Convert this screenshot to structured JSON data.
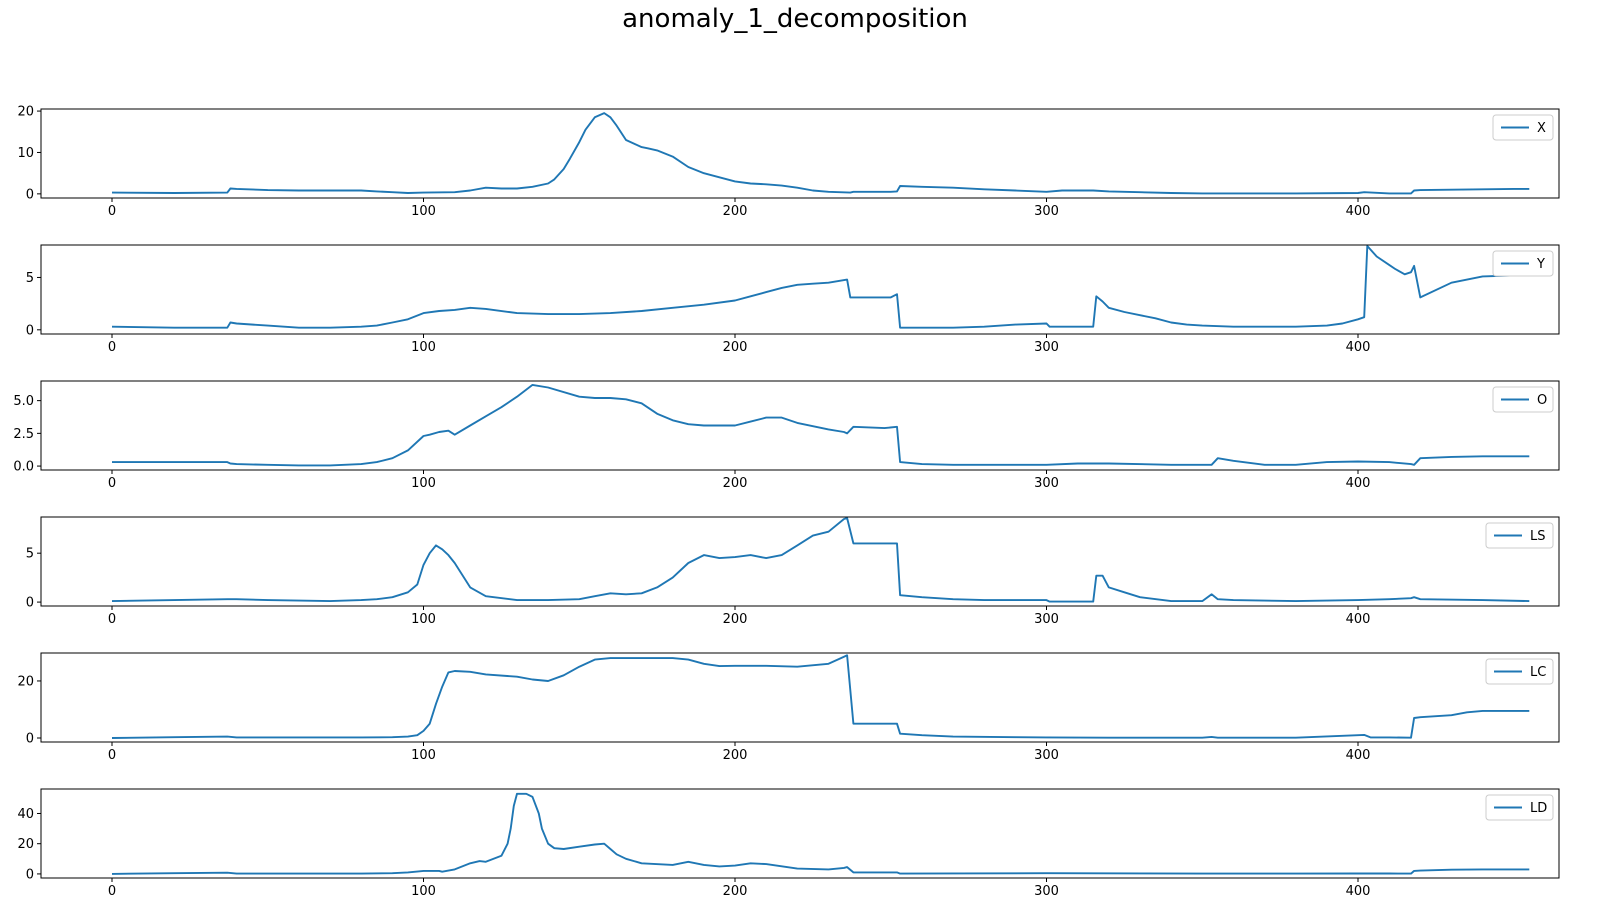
{
  "figure": {
    "title": "anomaly_1_decomposition"
  },
  "colors": {
    "line": "#1f77b4",
    "axes": "#000000",
    "legend_border": "#cccccc"
  },
  "chart_data": [
    {
      "type": "line",
      "legend": "X",
      "legend_loc": "upper right",
      "grid": false,
      "xlim": [
        0,
        455
      ],
      "ylim": [
        -1,
        20.5
      ],
      "xticks": [
        0,
        100,
        200,
        300,
        400
      ],
      "yticks": [
        0,
        10,
        20
      ],
      "x": [
        0,
        20,
        37,
        38,
        40,
        50,
        60,
        80,
        85,
        90,
        95,
        100,
        110,
        115,
        120,
        125,
        130,
        135,
        140,
        142,
        145,
        147,
        150,
        152,
        155,
        158,
        160,
        162,
        165,
        168,
        170,
        172,
        175,
        180,
        185,
        190,
        195,
        200,
        205,
        210,
        215,
        220,
        225,
        230,
        237,
        238,
        250,
        252,
        253,
        260,
        270,
        280,
        290,
        300,
        305,
        315,
        320,
        330,
        340,
        350,
        360,
        380,
        400,
        402,
        410,
        417,
        418,
        420,
        430,
        440,
        450,
        455
      ],
      "y": [
        0.3,
        0.2,
        0.3,
        1.3,
        1.2,
        0.9,
        0.8,
        0.8,
        0.6,
        0.4,
        0.2,
        0.3,
        0.4,
        0.8,
        1.5,
        1.3,
        1.3,
        1.7,
        2.5,
        3.5,
        6,
        8.5,
        12.5,
        15.5,
        18.5,
        19.5,
        18.5,
        16.5,
        13,
        12,
        11.3,
        11,
        10.5,
        9,
        6.5,
        5,
        4,
        3,
        2.5,
        2.3,
        2,
        1.5,
        0.8,
        0.5,
        0.3,
        0.5,
        0.5,
        0.6,
        1.9,
        1.7,
        1.5,
        1.1,
        0.8,
        0.5,
        0.8,
        0.8,
        0.6,
        0.4,
        0.2,
        0.1,
        0.1,
        0.1,
        0.2,
        0.4,
        0.1,
        0.1,
        0.8,
        0.9,
        1.0,
        1.1,
        1.2,
        1.2
      ]
    },
    {
      "type": "line",
      "legend": "Y",
      "legend_loc": "upper right",
      "grid": false,
      "xlim": [
        0,
        455
      ],
      "ylim": [
        -0.4,
        8.1
      ],
      "xticks": [
        0,
        100,
        200,
        300,
        400
      ],
      "yticks": [
        0,
        5
      ],
      "x": [
        0,
        20,
        37,
        38,
        40,
        50,
        60,
        70,
        80,
        85,
        90,
        95,
        100,
        105,
        110,
        115,
        120,
        130,
        140,
        150,
        160,
        170,
        180,
        190,
        200,
        205,
        210,
        215,
        220,
        225,
        230,
        236,
        237,
        250,
        252,
        253,
        260,
        270,
        280,
        290,
        300,
        301,
        315,
        316,
        318,
        320,
        325,
        330,
        335,
        340,
        345,
        350,
        360,
        380,
        390,
        395,
        400,
        402,
        403,
        406,
        410,
        412,
        415,
        417,
        418,
        420,
        430,
        440,
        450,
        455
      ],
      "y": [
        0.3,
        0.2,
        0.2,
        0.7,
        0.6,
        0.4,
        0.2,
        0.2,
        0.3,
        0.4,
        0.7,
        1.0,
        1.6,
        1.8,
        1.9,
        2.1,
        2.0,
        1.6,
        1.5,
        1.5,
        1.6,
        1.8,
        2.1,
        2.4,
        2.8,
        3.2,
        3.6,
        4.0,
        4.3,
        4.4,
        4.5,
        4.8,
        3.1,
        3.1,
        3.4,
        0.2,
        0.2,
        0.2,
        0.3,
        0.5,
        0.6,
        0.3,
        0.3,
        3.2,
        2.7,
        2.1,
        1.7,
        1.4,
        1.1,
        0.7,
        0.5,
        0.4,
        0.3,
        0.3,
        0.4,
        0.6,
        1.0,
        1.2,
        8,
        7,
        6.2,
        5.8,
        5.3,
        5.5,
        6.1,
        3.1,
        4.5,
        5.1,
        5.2,
        5.2
      ]
    },
    {
      "type": "line",
      "legend": "O",
      "legend_loc": "upper right",
      "grid": false,
      "xlim": [
        0,
        455
      ],
      "ylim": [
        -0.3,
        6.5
      ],
      "xticks": [
        0,
        100,
        200,
        300,
        400
      ],
      "yticks": [
        0.0,
        2.5,
        5.0
      ],
      "ytick_labels": [
        "0.0",
        "2.5",
        "5.0"
      ],
      "x": [
        0,
        20,
        37,
        38,
        40,
        50,
        60,
        70,
        80,
        85,
        90,
        95,
        100,
        102,
        105,
        108,
        110,
        115,
        120,
        125,
        130,
        135,
        140,
        150,
        155,
        160,
        165,
        170,
        175,
        180,
        185,
        190,
        200,
        205,
        210,
        215,
        220,
        230,
        235,
        236,
        238,
        248,
        252,
        253,
        260,
        270,
        280,
        300,
        310,
        320,
        340,
        350,
        353,
        355,
        360,
        370,
        380,
        390,
        400,
        410,
        417,
        418,
        420,
        430,
        440,
        450,
        455
      ],
      "y": [
        0.3,
        0.3,
        0.3,
        0.2,
        0.15,
        0.1,
        0.05,
        0.05,
        0.15,
        0.3,
        0.6,
        1.2,
        2.3,
        2.4,
        2.6,
        2.7,
        2.4,
        3.1,
        3.8,
        4.5,
        5.3,
        6.2,
        6.0,
        5.3,
        5.2,
        5.2,
        5.1,
        4.8,
        4.0,
        3.5,
        3.2,
        3.1,
        3.1,
        3.4,
        3.7,
        3.7,
        3.3,
        2.8,
        2.6,
        2.5,
        3.0,
        2.9,
        3.0,
        0.3,
        0.15,
        0.1,
        0.1,
        0.1,
        0.2,
        0.2,
        0.1,
        0.1,
        0.1,
        0.6,
        0.4,
        0.1,
        0.1,
        0.3,
        0.35,
        0.3,
        0.15,
        0.1,
        0.6,
        0.7,
        0.75,
        0.75,
        0.75
      ]
    },
    {
      "type": "line",
      "legend": "LS",
      "legend_loc": "upper right",
      "grid": false,
      "xlim": [
        0,
        455
      ],
      "ylim": [
        -0.4,
        8.7
      ],
      "xticks": [
        0,
        100,
        200,
        300,
        400
      ],
      "yticks": [
        0,
        5
      ],
      "x": [
        0,
        20,
        37,
        40,
        50,
        60,
        70,
        80,
        85,
        90,
        95,
        98,
        100,
        102,
        104,
        106,
        108,
        110,
        112,
        115,
        120,
        130,
        140,
        150,
        155,
        160,
        165,
        170,
        175,
        180,
        185,
        190,
        195,
        200,
        205,
        210,
        215,
        220,
        225,
        230,
        235,
        236,
        238,
        250,
        252,
        253,
        260,
        270,
        280,
        290,
        300,
        301,
        315,
        316,
        318,
        320,
        325,
        330,
        340,
        350,
        353,
        355,
        360,
        380,
        400,
        410,
        417,
        418,
        420,
        440,
        455
      ],
      "y": [
        0.1,
        0.2,
        0.3,
        0.3,
        0.2,
        0.15,
        0.1,
        0.2,
        0.3,
        0.5,
        1,
        1.8,
        3.8,
        5,
        5.8,
        5.4,
        4.8,
        4.0,
        3.0,
        1.5,
        0.6,
        0.2,
        0.2,
        0.3,
        0.6,
        0.9,
        0.8,
        0.9,
        1.5,
        2.5,
        4.0,
        4.8,
        4.5,
        4.6,
        4.8,
        4.5,
        4.8,
        5.8,
        6.8,
        7.2,
        8.5,
        8.6,
        6.0,
        6.0,
        6.0,
        0.7,
        0.5,
        0.3,
        0.2,
        0.2,
        0.2,
        0.05,
        0.05,
        2.7,
        2.7,
        1.5,
        1.0,
        0.5,
        0.1,
        0.1,
        0.8,
        0.3,
        0.2,
        0.1,
        0.2,
        0.3,
        0.4,
        0.5,
        0.3,
        0.2,
        0.1
      ]
    },
    {
      "type": "line",
      "legend": "LC",
      "legend_loc": "upper right",
      "grid": false,
      "xlim": [
        0,
        455
      ],
      "ylim": [
        -1.4,
        29.8
      ],
      "xticks": [
        0,
        100,
        200,
        300,
        400
      ],
      "yticks": [
        0,
        20
      ],
      "x": [
        0,
        20,
        37,
        40,
        60,
        80,
        90,
        95,
        98,
        100,
        102,
        104,
        106,
        108,
        110,
        115,
        120,
        130,
        135,
        140,
        145,
        150,
        155,
        160,
        170,
        180,
        185,
        190,
        195,
        200,
        210,
        220,
        230,
        235,
        236,
        238,
        250,
        252,
        253,
        260,
        270,
        290,
        300,
        320,
        350,
        353,
        355,
        380,
        400,
        402,
        404,
        410,
        417,
        418,
        420,
        430,
        435,
        440,
        450,
        455
      ],
      "y": [
        0,
        0.3,
        0.5,
        0.2,
        0.2,
        0.2,
        0.3,
        0.5,
        1.0,
        2.5,
        5.0,
        12,
        18,
        23,
        23.5,
        23.2,
        22.3,
        21.5,
        20.5,
        20,
        22,
        25,
        27.5,
        28,
        28,
        28,
        27.5,
        26,
        25.2,
        25.3,
        25.3,
        25.0,
        26.0,
        28.5,
        29,
        5.0,
        5.0,
        5.0,
        1.5,
        1.0,
        0.5,
        0.3,
        0.2,
        0.1,
        0.1,
        0.4,
        0.1,
        0.1,
        1.0,
        1.1,
        0.2,
        0.2,
        0.1,
        7.0,
        7.3,
        8.0,
        9.0,
        9.5,
        9.5,
        9.5
      ]
    },
    {
      "type": "line",
      "legend": "LD",
      "legend_loc": "upper right",
      "grid": false,
      "xlim": [
        0,
        455
      ],
      "ylim": [
        -2.7,
        56.2
      ],
      "xticks": [
        0,
        100,
        200,
        300,
        400
      ],
      "yticks": [
        0,
        20,
        40
      ],
      "x": [
        0,
        20,
        37,
        40,
        60,
        80,
        90,
        95,
        100,
        105,
        106,
        110,
        115,
        118,
        120,
        125,
        127,
        128,
        129,
        130,
        133,
        135,
        137,
        138,
        140,
        142,
        145,
        150,
        155,
        158,
        160,
        162,
        165,
        170,
        180,
        185,
        190,
        195,
        200,
        205,
        210,
        220,
        230,
        235,
        236,
        238,
        250,
        252,
        253,
        300,
        350,
        380,
        400,
        410,
        417,
        418,
        420,
        430,
        440,
        455
      ],
      "y": [
        0,
        0.5,
        0.8,
        0.2,
        0.2,
        0.2,
        0.5,
        1.0,
        2,
        2,
        1.5,
        3,
        7,
        8.5,
        8,
        12,
        20,
        30,
        45,
        53,
        53,
        51,
        40,
        30,
        20,
        17,
        16.5,
        18,
        19.5,
        20,
        16.5,
        13,
        10,
        7,
        6,
        8,
        6,
        5,
        5.5,
        7,
        6.5,
        3.5,
        3,
        4,
        4.5,
        1,
        1,
        1,
        0.2,
        0.5,
        0.2,
        0.2,
        0.3,
        0.3,
        0.2,
        2,
        2.2,
        2.8,
        3.0,
        3.0
      ]
    }
  ]
}
